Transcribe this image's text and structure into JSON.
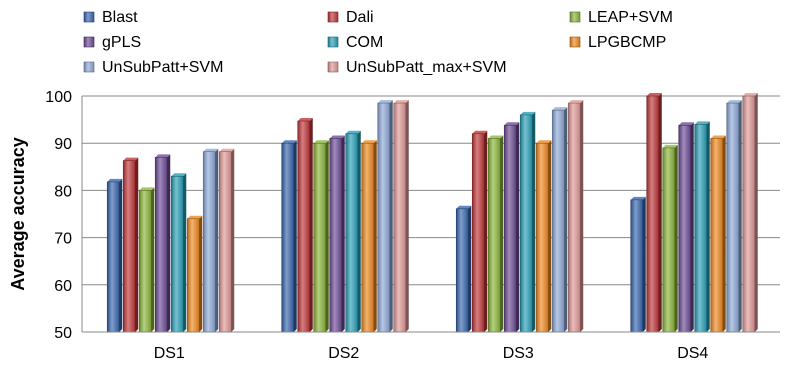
{
  "chart_data": {
    "type": "bar",
    "title": "",
    "xlabel": "",
    "ylabel": "Average accuracy",
    "ylim": [
      50,
      100
    ],
    "yticks": [
      50,
      60,
      70,
      80,
      90,
      100
    ],
    "categories": [
      "DS1",
      "DS2",
      "DS3",
      "DS4"
    ],
    "grid": true,
    "legend_position": "top",
    "series": [
      {
        "name": "Blast",
        "color": "#3a68b0",
        "values": [
          81.8,
          90,
          76.1,
          78
        ]
      },
      {
        "name": "Dali",
        "color": "#c0393b",
        "values": [
          86.3,
          94.7,
          92,
          100
        ]
      },
      {
        "name": "LEAP+SVM",
        "color": "#8cb63c",
        "values": [
          80,
          90,
          91,
          89
        ]
      },
      {
        "name": "gPLS",
        "color": "#6e4d96",
        "values": [
          87,
          91,
          93.8,
          93.8
        ]
      },
      {
        "name": "COM",
        "color": "#2aa0b8",
        "values": [
          83,
          92,
          96,
          94
        ]
      },
      {
        "name": "LPGBCMP",
        "color": "#ef8a22",
        "values": [
          74,
          90,
          90,
          91
        ]
      },
      {
        "name": "UnSubPatt+SVM",
        "color": "#8fabd8",
        "values": [
          88.2,
          98.5,
          97,
          98.5
        ]
      },
      {
        "name": "UnSubPatt_max+SVM",
        "color": "#e09a98",
        "values": [
          88.2,
          98.5,
          98.5,
          100
        ]
      }
    ]
  }
}
